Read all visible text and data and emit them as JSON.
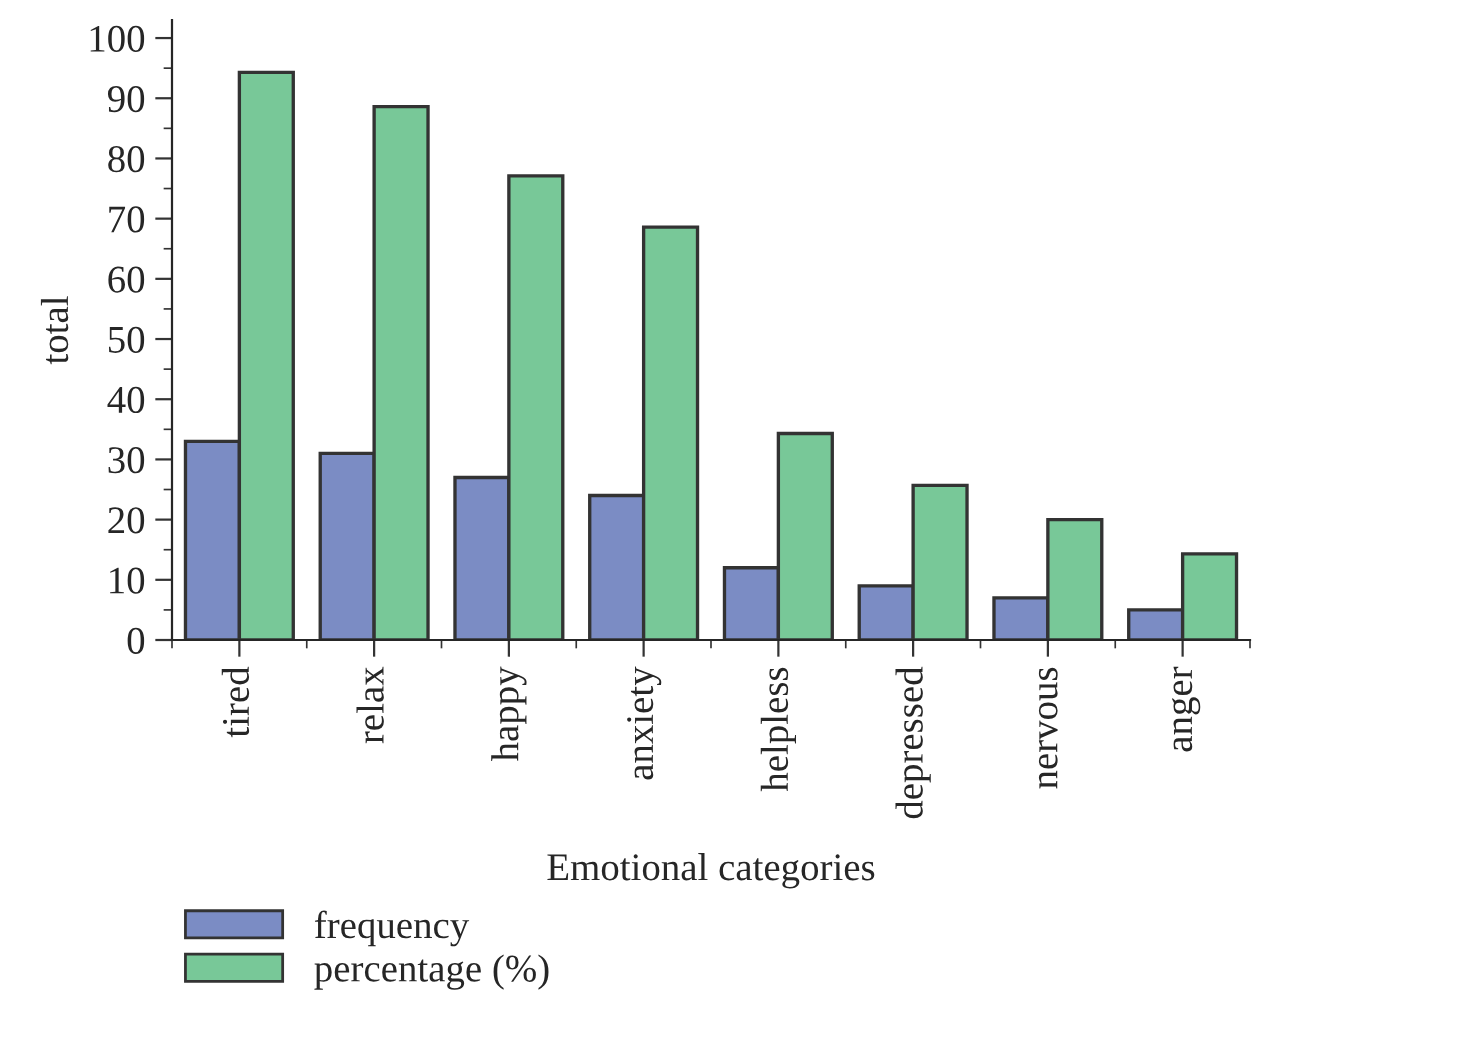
{
  "chart_data": {
    "type": "bar",
    "xlabel": "Emotional categories",
    "ylabel": "total",
    "categories": [
      "tired",
      "relax",
      "happy",
      "anxiety",
      "helpless",
      "depressed",
      "nervous",
      "anger"
    ],
    "series": [
      {
        "name": "frequency",
        "color": "#7b8cc4",
        "values": [
          33,
          31,
          27,
          24,
          12,
          9,
          7,
          5
        ]
      },
      {
        "name": "percentage (%)",
        "color": "#78c898",
        "values": [
          94.3,
          88.6,
          77.1,
          68.6,
          34.3,
          25.7,
          20,
          14.3
        ]
      }
    ],
    "ylim": [
      0,
      103
    ],
    "yticks": [
      0,
      10,
      20,
      30,
      40,
      50,
      60,
      70,
      80,
      90,
      100
    ],
    "grid": false,
    "legend": "bottom left"
  }
}
